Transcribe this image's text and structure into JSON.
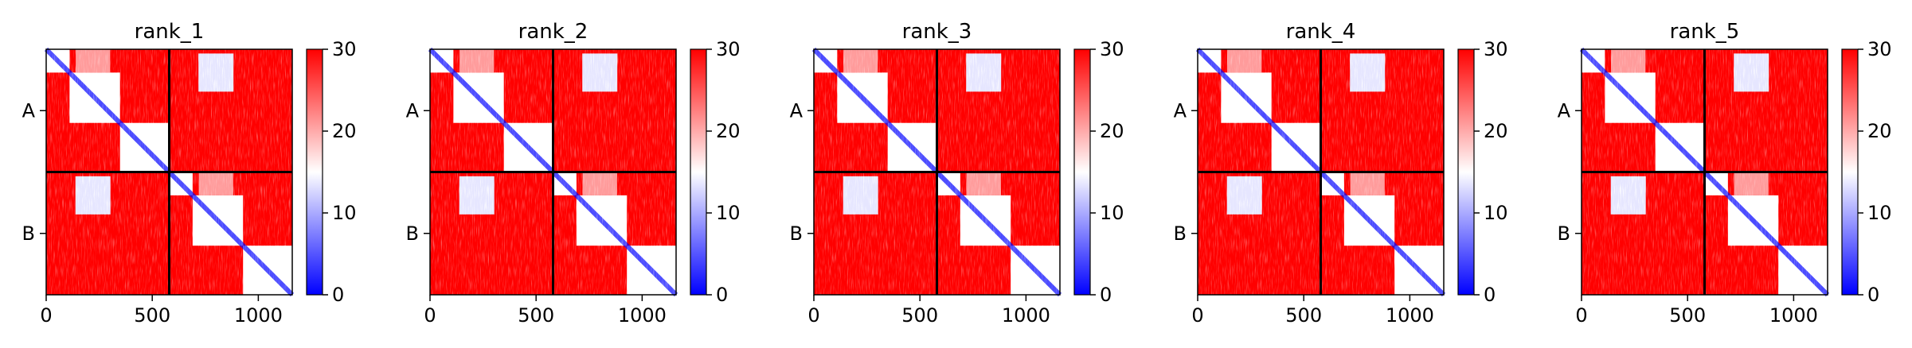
{
  "figure": {
    "colors": {
      "low": "#0000ff",
      "mid": "#ffffff",
      "high": "#ff0000",
      "border": "#000000"
    },
    "colormap": "bwr"
  },
  "chart_data": [
    {
      "type": "heatmap",
      "title": "rank_1",
      "xticks": [
        "0",
        "500",
        "1000"
      ],
      "xtick_values": [
        0,
        500,
        1000
      ],
      "yticks": [
        "A",
        "B"
      ],
      "xlim": [
        0,
        1160
      ],
      "chains": [
        {
          "name": "A",
          "length": 580
        },
        {
          "name": "B",
          "length": 580
        }
      ],
      "colorbar": {
        "ticks": [
          "0",
          "10",
          "20",
          "30"
        ],
        "tick_values": [
          0,
          10,
          20,
          30
        ],
        "vmin": 0,
        "vmax": 30
      }
    },
    {
      "type": "heatmap",
      "title": "rank_2",
      "xticks": [
        "0",
        "500",
        "1000"
      ],
      "xtick_values": [
        0,
        500,
        1000
      ],
      "yticks": [
        "A",
        "B"
      ],
      "xlim": [
        0,
        1160
      ],
      "chains": [
        {
          "name": "A",
          "length": 580
        },
        {
          "name": "B",
          "length": 580
        }
      ],
      "colorbar": {
        "ticks": [
          "0",
          "10",
          "20",
          "30"
        ],
        "tick_values": [
          0,
          10,
          20,
          30
        ],
        "vmin": 0,
        "vmax": 30
      }
    },
    {
      "type": "heatmap",
      "title": "rank_3",
      "xticks": [
        "0",
        "500",
        "1000"
      ],
      "xtick_values": [
        0,
        500,
        1000
      ],
      "yticks": [
        "A",
        "B"
      ],
      "xlim": [
        0,
        1160
      ],
      "chains": [
        {
          "name": "A",
          "length": 580
        },
        {
          "name": "B",
          "length": 580
        }
      ],
      "colorbar": {
        "ticks": [
          "0",
          "10",
          "20",
          "30"
        ],
        "tick_values": [
          0,
          10,
          20,
          30
        ],
        "vmin": 0,
        "vmax": 30
      }
    },
    {
      "type": "heatmap",
      "title": "rank_4",
      "xticks": [
        "0",
        "500",
        "1000"
      ],
      "xtick_values": [
        0,
        500,
        1000
      ],
      "yticks": [
        "A",
        "B"
      ],
      "xlim": [
        0,
        1160
      ],
      "chains": [
        {
          "name": "A",
          "length": 580
        },
        {
          "name": "B",
          "length": 580
        }
      ],
      "colorbar": {
        "ticks": [
          "0",
          "10",
          "20",
          "30"
        ],
        "tick_values": [
          0,
          10,
          20,
          30
        ],
        "vmin": 0,
        "vmax": 30
      }
    },
    {
      "type": "heatmap",
      "title": "rank_5",
      "xticks": [
        "0",
        "500",
        "1000"
      ],
      "xtick_values": [
        0,
        500,
        1000
      ],
      "yticks": [
        "A",
        "B"
      ],
      "xlim": [
        0,
        1160
      ],
      "chains": [
        {
          "name": "A",
          "length": 580
        },
        {
          "name": "B",
          "length": 580
        }
      ],
      "colorbar": {
        "ticks": [
          "0",
          "10",
          "20",
          "30"
        ],
        "tick_values": [
          0,
          10,
          20,
          30
        ],
        "vmin": 0,
        "vmax": 30
      }
    }
  ]
}
